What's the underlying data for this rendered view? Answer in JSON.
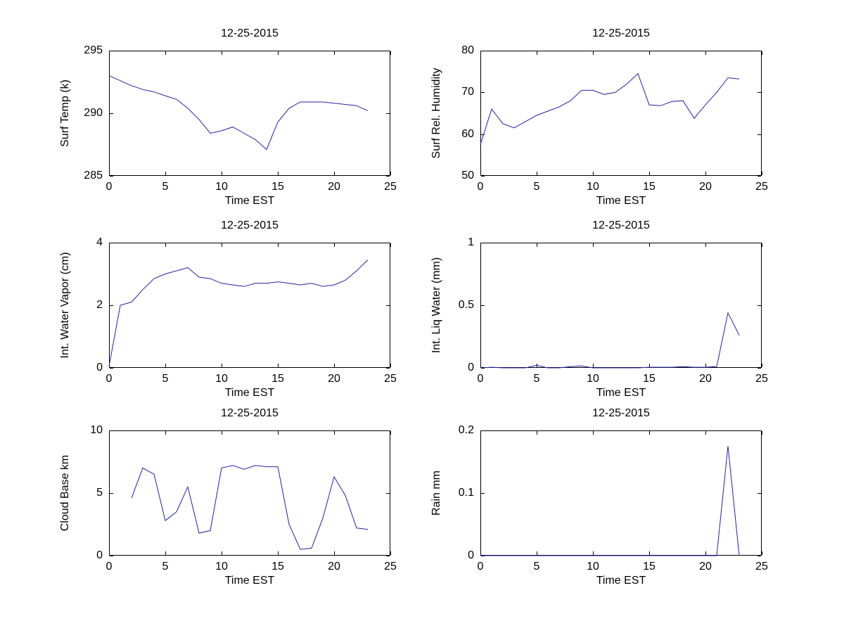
{
  "figure": {
    "background": "#ffffff",
    "line_color": "#2222aa",
    "axis_color": "#000000"
  },
  "chart_data": [
    {
      "type": "line",
      "title": "12-25-2015",
      "xlabel": "Time EST",
      "ylabel": "Surf Temp (k)",
      "xlim": [
        0,
        25
      ],
      "ylim": [
        285,
        295
      ],
      "xticks": [
        0,
        5,
        10,
        15,
        20,
        25
      ],
      "yticks": [
        285,
        290,
        295
      ],
      "grid": false,
      "legend": "none",
      "x": [
        0,
        1,
        2,
        3,
        4,
        5,
        6,
        7,
        8,
        9,
        10,
        11,
        12,
        13,
        14,
        15,
        16,
        17,
        18,
        19,
        20,
        21,
        22,
        23
      ],
      "y": [
        293,
        292.6,
        292.2,
        291.9,
        291.7,
        291.4,
        291.1,
        290.4,
        289.5,
        288.4,
        288.6,
        288.9,
        288.4,
        287.9,
        287.1,
        289.3,
        290.4,
        290.9,
        290.9,
        290.9,
        290.8,
        290.7,
        290.6,
        290.2
      ]
    },
    {
      "type": "line",
      "title": "12-25-2015",
      "xlabel": "Time EST",
      "ylabel": "Surf Rel. Humidity",
      "xlim": [
        0,
        25
      ],
      "ylim": [
        50,
        80
      ],
      "xticks": [
        0,
        5,
        10,
        15,
        20,
        25
      ],
      "yticks": [
        50,
        60,
        70,
        80
      ],
      "grid": false,
      "legend": "none",
      "x": [
        0,
        1,
        2,
        3,
        4,
        5,
        6,
        7,
        8,
        9,
        10,
        11,
        12,
        13,
        14,
        15,
        16,
        17,
        18,
        19,
        20,
        21,
        22,
        23
      ],
      "y": [
        57.5,
        66,
        62.5,
        61.5,
        63,
        64.5,
        65.5,
        66.5,
        68,
        70.5,
        70.5,
        69.5,
        70,
        72,
        74.5,
        67,
        66.8,
        67.8,
        68,
        63.8,
        67,
        70,
        73.5,
        73.2
      ]
    },
    {
      "type": "line",
      "title": "12-25-2015",
      "xlabel": "Time EST",
      "ylabel": "Int. Water Vapor (cm)",
      "xlim": [
        0,
        25
      ],
      "ylim": [
        0,
        4
      ],
      "xticks": [
        0,
        5,
        10,
        15,
        20,
        25
      ],
      "yticks": [
        0,
        2,
        4
      ],
      "grid": false,
      "legend": "none",
      "x": [
        0,
        1,
        2,
        3,
        4,
        5,
        6,
        7,
        8,
        9,
        10,
        11,
        12,
        13,
        14,
        15,
        16,
        17,
        18,
        19,
        20,
        21,
        22,
        23
      ],
      "y": [
        0.05,
        2.0,
        2.1,
        2.5,
        2.85,
        3.0,
        3.1,
        3.2,
        2.9,
        2.85,
        2.7,
        2.65,
        2.6,
        2.7,
        2.7,
        2.75,
        2.7,
        2.65,
        2.7,
        2.6,
        2.65,
        2.8,
        3.1,
        3.45
      ]
    },
    {
      "type": "line",
      "title": "12-25-2015",
      "xlabel": "Time EST",
      "ylabel": "Int. Liq Water (mm)",
      "xlim": [
        0,
        25
      ],
      "ylim": [
        0,
        1
      ],
      "xticks": [
        0,
        5,
        10,
        15,
        20,
        25
      ],
      "yticks": [
        0,
        0.5,
        1
      ],
      "grid": false,
      "legend": "none",
      "x": [
        0,
        1,
        2,
        3,
        4,
        5,
        6,
        7,
        8,
        9,
        10,
        11,
        12,
        13,
        14,
        15,
        16,
        17,
        18,
        19,
        20,
        21,
        22,
        23
      ],
      "y": [
        0,
        0.005,
        0,
        0,
        0,
        0.02,
        0,
        0,
        0.01,
        0.015,
        0,
        0,
        0,
        0,
        0,
        0.005,
        0.005,
        0.005,
        0.01,
        0.005,
        0.005,
        0.01,
        0.44,
        0.26
      ]
    },
    {
      "type": "line",
      "title": "12-25-2015",
      "xlabel": "Time EST",
      "ylabel": "Cloud Base km",
      "xlim": [
        0,
        25
      ],
      "ylim": [
        0,
        10
      ],
      "xticks": [
        0,
        5,
        10,
        15,
        20,
        25
      ],
      "yticks": [
        0,
        5,
        10
      ],
      "grid": false,
      "legend": "none",
      "x": [
        2,
        3,
        4,
        5,
        6,
        7,
        8,
        9,
        10,
        11,
        12,
        13,
        14,
        15,
        16,
        17,
        18,
        19,
        20,
        21,
        22,
        23
      ],
      "y": [
        4.6,
        7.0,
        6.5,
        2.8,
        3.5,
        5.5,
        1.8,
        2.0,
        7.0,
        7.2,
        6.9,
        7.2,
        7.1,
        7.1,
        2.5,
        0.5,
        0.6,
        3.0,
        6.3,
        4.8,
        2.2,
        2.1
      ]
    },
    {
      "type": "line",
      "title": "12-25-2015",
      "xlabel": "Time EST",
      "ylabel": "Rain mm",
      "xlim": [
        0,
        25
      ],
      "ylim": [
        0,
        0.2
      ],
      "xticks": [
        0,
        5,
        10,
        15,
        20,
        25
      ],
      "yticks": [
        0,
        0.1,
        0.2
      ],
      "grid": false,
      "legend": "none",
      "x": [
        0,
        1,
        2,
        3,
        4,
        5,
        6,
        7,
        8,
        9,
        10,
        11,
        12,
        13,
        14,
        15,
        16,
        17,
        18,
        19,
        20,
        21,
        22,
        23
      ],
      "y": [
        0,
        0,
        0,
        0,
        0,
        0,
        0,
        0,
        0,
        0,
        0,
        0,
        0,
        0,
        0,
        0,
        0,
        0,
        0,
        0,
        0,
        0,
        0.175,
        0
      ]
    }
  ]
}
